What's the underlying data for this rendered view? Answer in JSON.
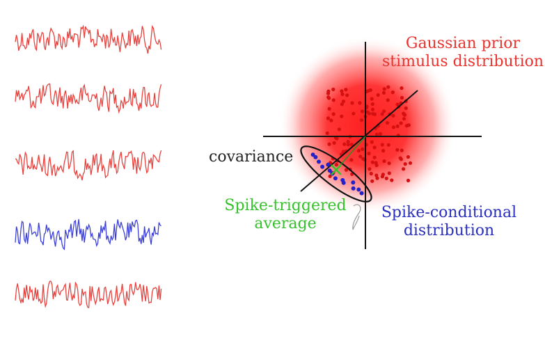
{
  "labels": {
    "prior_line1": "Gaussian prior",
    "prior_line2": "stimulus distribution",
    "covariance": "covariance",
    "sta_line1": "Spike-triggered",
    "sta_line2": "average",
    "scd_line1": "Spike-conditional",
    "scd_line2": "distribution"
  },
  "colors": {
    "prior": "#e8332e",
    "trace_red": "#e8403c",
    "trace_blue": "#3b3fd8",
    "sta": "#36c22b",
    "scd": "#2a2fbd",
    "ink": "#111111"
  },
  "traces": [
    "red",
    "red",
    "red",
    "blue",
    "red"
  ]
}
